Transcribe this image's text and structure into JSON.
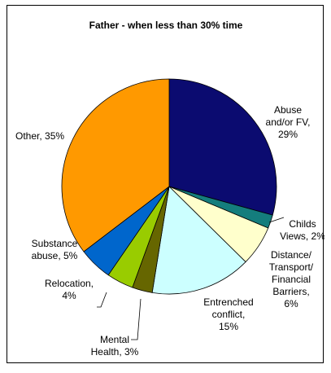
{
  "chart_data": {
    "type": "pie",
    "title": "Father - when less than 30% time",
    "slices": [
      {
        "label": "Abuse and/or FV",
        "value": 29,
        "display": "Abuse and/or FV, 29%",
        "color": "#0b0b70"
      },
      {
        "label": "Childs Views",
        "value": 2,
        "display": "Childs Views, 2%",
        "color": "#147d7d"
      },
      {
        "label": "Distance/ Transport/ Financial Barriers",
        "value": 6,
        "display": "Distance/ Transport/ Financial Barriers, 6%",
        "color": "#ffffcc"
      },
      {
        "label": "Entrenched conflict",
        "value": 15,
        "display": "Entrenched conflict, 15%",
        "color": "#ccffff"
      },
      {
        "label": "Mental Health",
        "value": 3,
        "display": "Mental Health, 3%",
        "color": "#666600"
      },
      {
        "label": "Relocation",
        "value": 4,
        "display": "Relocation, 4%",
        "color": "#99cc00"
      },
      {
        "label": "Substance abuse",
        "value": 5,
        "display": "Substance abuse, 5%",
        "color": "#0066cc"
      },
      {
        "label": "Other",
        "value": 35,
        "display": "Other, 35%",
        "color": "#ff9900"
      }
    ]
  }
}
